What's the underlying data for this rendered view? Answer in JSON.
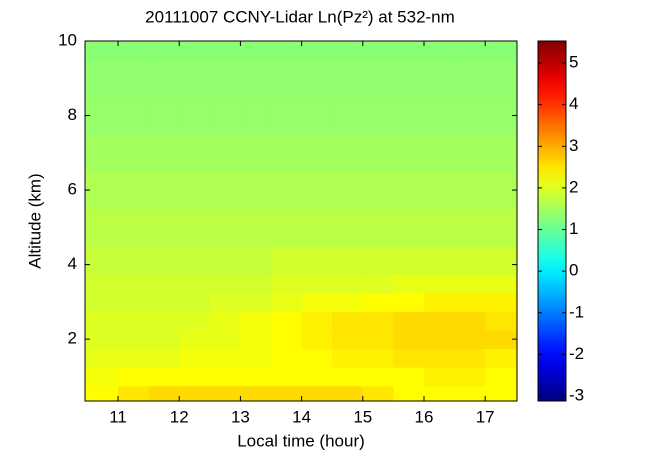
{
  "chart_data": {
    "type": "heatmap",
    "title": "20111007 CCNY-Lidar Ln(Pz²) at 532-nm",
    "x_label": "Local time (hour)",
    "y_label": "Altitude (km)",
    "x": [
      10.75,
      11.25,
      11.75,
      12.25,
      12.75,
      13.25,
      13.75,
      14.25,
      14.75,
      15.25,
      15.75,
      16.25,
      16.75,
      17.25
    ],
    "y": [
      0.5,
      1,
      1.5,
      2,
      2.5,
      3,
      3.5,
      4,
      5,
      6,
      7,
      8,
      9,
      10
    ],
    "values": [
      [
        2.3,
        2.5,
        2.6,
        2.6,
        2.6,
        2.6,
        2.6,
        2.6,
        2.6,
        2.5,
        2.3,
        2.3,
        2.3,
        2.3
      ],
      [
        2.2,
        2.3,
        2.3,
        2.3,
        2.3,
        2.3,
        2.3,
        2.3,
        2.3,
        2.3,
        2.3,
        2.4,
        2.4,
        2.3
      ],
      [
        2.1,
        2.1,
        2.1,
        2.2,
        2.2,
        2.2,
        2.3,
        2.3,
        2.4,
        2.4,
        2.5,
        2.5,
        2.5,
        2.4
      ],
      [
        2.0,
        2.0,
        2.0,
        2.1,
        2.1,
        2.2,
        2.3,
        2.4,
        2.5,
        2.5,
        2.6,
        2.6,
        2.6,
        2.6
      ],
      [
        2.0,
        2.0,
        2.0,
        2.0,
        2.1,
        2.2,
        2.3,
        2.4,
        2.5,
        2.5,
        2.6,
        2.6,
        2.6,
        2.5
      ],
      [
        1.9,
        1.9,
        1.9,
        1.9,
        2.0,
        2.0,
        2.1,
        2.2,
        2.2,
        2.3,
        2.3,
        2.4,
        2.4,
        2.4
      ],
      [
        1.9,
        1.9,
        1.9,
        1.9,
        1.9,
        1.9,
        2.0,
        2.0,
        2.0,
        2.0,
        2.1,
        2.1,
        2.1,
        2.1
      ],
      [
        1.8,
        1.8,
        1.8,
        1.8,
        1.8,
        1.8,
        1.9,
        1.9,
        1.9,
        1.9,
        1.9,
        1.9,
        1.9,
        1.9
      ],
      [
        1.7,
        1.7,
        1.7,
        1.7,
        1.7,
        1.7,
        1.7,
        1.7,
        1.7,
        1.7,
        1.7,
        1.7,
        1.7,
        1.7
      ],
      [
        1.6,
        1.6,
        1.6,
        1.6,
        1.6,
        1.6,
        1.6,
        1.6,
        1.6,
        1.6,
        1.6,
        1.6,
        1.6,
        1.6
      ],
      [
        1.5,
        1.5,
        1.5,
        1.5,
        1.5,
        1.5,
        1.5,
        1.5,
        1.5,
        1.5,
        1.5,
        1.5,
        1.5,
        1.5
      ],
      [
        1.4,
        1.4,
        1.4,
        1.4,
        1.4,
        1.4,
        1.4,
        1.4,
        1.4,
        1.4,
        1.4,
        1.4,
        1.4,
        1.4
      ],
      [
        1.35,
        1.35,
        1.35,
        1.35,
        1.35,
        1.35,
        1.35,
        1.35,
        1.35,
        1.35,
        1.35,
        1.35,
        1.35,
        1.35
      ],
      [
        1.3,
        1.3,
        1.3,
        1.3,
        1.3,
        1.3,
        1.3,
        1.3,
        1.3,
        1.3,
        1.3,
        1.3,
        1.3,
        1.3
      ]
    ],
    "xlim": [
      10.46,
      17.52
    ],
    "xticks": [
      11,
      12,
      13,
      14,
      15,
      16,
      17
    ],
    "ylim": [
      0.34,
      10
    ],
    "yticks": [
      2,
      4,
      6,
      8,
      10
    ],
    "colormap": "jet",
    "clim": [
      -3.12,
      5.53
    ],
    "cticks": [
      -3,
      -2,
      -1,
      0,
      1,
      2,
      3,
      4,
      5
    ]
  }
}
